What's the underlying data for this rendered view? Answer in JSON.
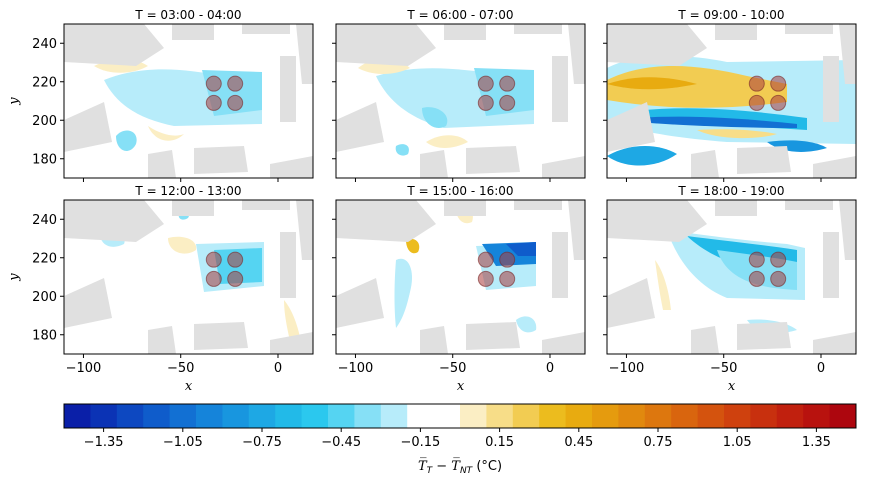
{
  "chart_data": {
    "type": "heatmap",
    "panels": [
      {
        "title": "T = 03:00 - 04:00"
      },
      {
        "title": "T = 06:00 - 07:00"
      },
      {
        "title": "T = 09:00 - 10:00"
      },
      {
        "title": "T = 12:00 - 13:00"
      },
      {
        "title": "T = 15:00 - 16:00"
      },
      {
        "title": "T = 18:00 - 19:00"
      }
    ],
    "xlabel": "x",
    "ylabel": "y",
    "xlim": [
      -110,
      18
    ],
    "ylim": [
      170,
      250
    ],
    "xticks": [
      -100,
      -50,
      0
    ],
    "yticks": [
      180,
      200,
      220,
      240
    ],
    "tree_centers": [
      [
        -33,
        219
      ],
      [
        -22,
        219
      ],
      [
        -33,
        209
      ],
      [
        -22,
        209
      ]
    ],
    "colorbar": {
      "label": "T̅_T − T̅_NT (°C)",
      "label_main": "T̅",
      "label_sub1": "T",
      "label_mid": " − T̅",
      "label_sub2": "NT",
      "label_unit": " (°C)",
      "range": [
        -1.5,
        1.5
      ],
      "step": 0.1,
      "ticks": [
        "−1.35",
        "−1.05",
        "−0.75",
        "−0.45",
        "−0.15",
        "0.15",
        "0.45",
        "0.75",
        "1.05",
        "1.35"
      ],
      "colors": [
        "#0a1fa8",
        "#0b33b5",
        "#0d48c1",
        "#0f5ccb",
        "#1270d3",
        "#1584da",
        "#1896df",
        "#1ea8e4",
        "#22bae8",
        "#2bc8ee",
        "#55d4f2",
        "#86e0f6",
        "#b7ecfa",
        "#ffffff",
        "#ffffff",
        "#fbeec4",
        "#f7dd88",
        "#f2cc52",
        "#ecbc1e",
        "#e8ab10",
        "#e59b0e",
        "#e1890e",
        "#dd770e",
        "#d9650e",
        "#d4530e",
        "#cf410e",
        "#c8300e",
        "#c1200e",
        "#b8120e",
        "#ad060e"
      ]
    }
  }
}
